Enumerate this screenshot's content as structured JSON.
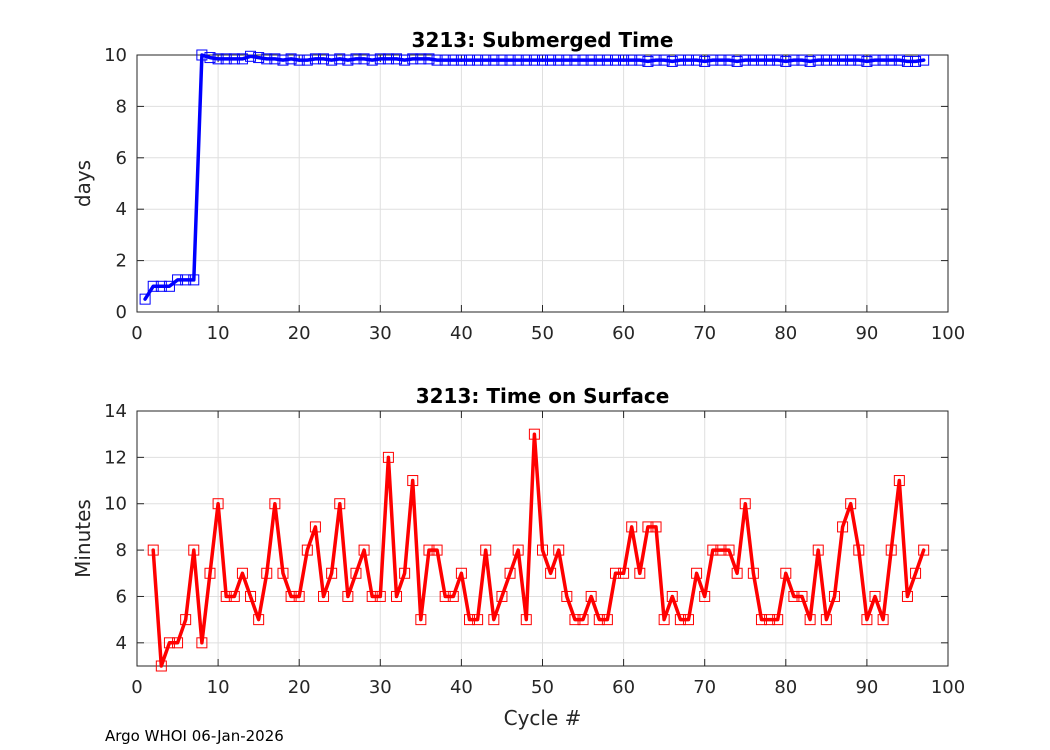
{
  "chart_data": [
    {
      "type": "line",
      "title": "3213: Submerged Time",
      "xlabel": "",
      "ylabel": "days",
      "xlim": [
        0,
        100
      ],
      "ylim": [
        0,
        10
      ],
      "xticks": [
        "0",
        "10",
        "20",
        "30",
        "40",
        "50",
        "60",
        "70",
        "80",
        "90",
        "100"
      ],
      "yticks": [
        "0",
        "2",
        "4",
        "6",
        "8",
        "10"
      ],
      "grid": true,
      "color": "#0000ff",
      "marker": "square",
      "series": [
        {
          "name": "Submerged Time",
          "x": [
            1,
            2,
            3,
            4,
            5,
            6,
            7,
            8,
            9,
            10,
            11,
            12,
            13,
            14,
            15,
            16,
            17,
            18,
            19,
            20,
            21,
            22,
            23,
            24,
            25,
            26,
            27,
            28,
            29,
            30,
            31,
            32,
            33,
            34,
            35,
            36,
            37,
            38,
            39,
            40,
            41,
            42,
            43,
            44,
            45,
            46,
            47,
            48,
            49,
            50,
            51,
            52,
            53,
            54,
            55,
            56,
            57,
            58,
            59,
            60,
            61,
            62,
            63,
            64,
            65,
            66,
            67,
            68,
            69,
            70,
            71,
            72,
            73,
            74,
            75,
            76,
            77,
            78,
            79,
            80,
            81,
            82,
            83,
            84,
            85,
            86,
            87,
            88,
            89,
            90,
            91,
            92,
            93,
            94,
            95,
            96,
            97
          ],
          "values": [
            0.5,
            1.0,
            1.0,
            1.0,
            1.25,
            1.25,
            1.25,
            10.0,
            9.9,
            9.85,
            9.85,
            9.85,
            9.85,
            9.95,
            9.9,
            9.85,
            9.85,
            9.8,
            9.85,
            9.8,
            9.8,
            9.85,
            9.85,
            9.8,
            9.85,
            9.8,
            9.85,
            9.85,
            9.8,
            9.85,
            9.85,
            9.85,
            9.8,
            9.85,
            9.85,
            9.85,
            9.8,
            9.8,
            9.8,
            9.8,
            9.8,
            9.8,
            9.8,
            9.8,
            9.8,
            9.8,
            9.8,
            9.8,
            9.8,
            9.8,
            9.8,
            9.8,
            9.8,
            9.8,
            9.8,
            9.8,
            9.8,
            9.8,
            9.8,
            9.8,
            9.8,
            9.8,
            9.75,
            9.8,
            9.8,
            9.75,
            9.8,
            9.8,
            9.8,
            9.75,
            9.8,
            9.8,
            9.8,
            9.75,
            9.8,
            9.8,
            9.8,
            9.8,
            9.8,
            9.75,
            9.8,
            9.8,
            9.75,
            9.8,
            9.8,
            9.8,
            9.8,
            9.8,
            9.8,
            9.75,
            9.8,
            9.8,
            9.8,
            9.8,
            9.75,
            9.75,
            9.8
          ]
        }
      ]
    },
    {
      "type": "line",
      "title": "3213: Time on Surface",
      "xlabel": "Cycle #",
      "ylabel": "Minutes",
      "xlim": [
        0,
        100
      ],
      "ylim": [
        3,
        14
      ],
      "xticks": [
        "0",
        "10",
        "20",
        "30",
        "40",
        "50",
        "60",
        "70",
        "80",
        "90",
        "100"
      ],
      "yticks": [
        "4",
        "6",
        "8",
        "10",
        "12",
        "14"
      ],
      "grid": true,
      "color": "#ff0000",
      "marker": "square",
      "series": [
        {
          "name": "Time on Surface",
          "x": [
            2,
            3,
            4,
            5,
            6,
            7,
            8,
            9,
            10,
            11,
            12,
            13,
            14,
            15,
            16,
            17,
            18,
            19,
            20,
            21,
            22,
            23,
            24,
            25,
            26,
            27,
            28,
            29,
            30,
            31,
            32,
            33,
            34,
            35,
            36,
            37,
            38,
            39,
            40,
            41,
            42,
            43,
            44,
            45,
            46,
            47,
            48,
            49,
            50,
            51,
            52,
            53,
            54,
            55,
            56,
            57,
            58,
            59,
            60,
            61,
            62,
            63,
            64,
            65,
            66,
            67,
            68,
            69,
            70,
            71,
            72,
            73,
            74,
            75,
            76,
            77,
            78,
            79,
            80,
            81,
            82,
            83,
            84,
            85,
            86,
            87,
            88,
            89,
            90,
            91,
            92,
            93,
            94,
            95,
            96,
            97
          ],
          "values": [
            8,
            3,
            4,
            4,
            5,
            8,
            4,
            7,
            10,
            6,
            6,
            7,
            6,
            5,
            7,
            10,
            7,
            6,
            6,
            8,
            9,
            6,
            7,
            10,
            6,
            7,
            8,
            6,
            6,
            12,
            6,
            7,
            11,
            5,
            8,
            8,
            6,
            6,
            7,
            5,
            5,
            8,
            5,
            6,
            7,
            8,
            5,
            13,
            8,
            7,
            8,
            6,
            5,
            5,
            6,
            5,
            5,
            7,
            7,
            9,
            7,
            9,
            9,
            5,
            6,
            5,
            5,
            7,
            6,
            8,
            8,
            8,
            7,
            10,
            7,
            5,
            5,
            5,
            7,
            6,
            6,
            5,
            8,
            5,
            6,
            9,
            10,
            8,
            5,
            6,
            5,
            8,
            11,
            6,
            7,
            8
          ]
        }
      ]
    }
  ],
  "footer": "Argo WHOI 06-Jan-2026"
}
